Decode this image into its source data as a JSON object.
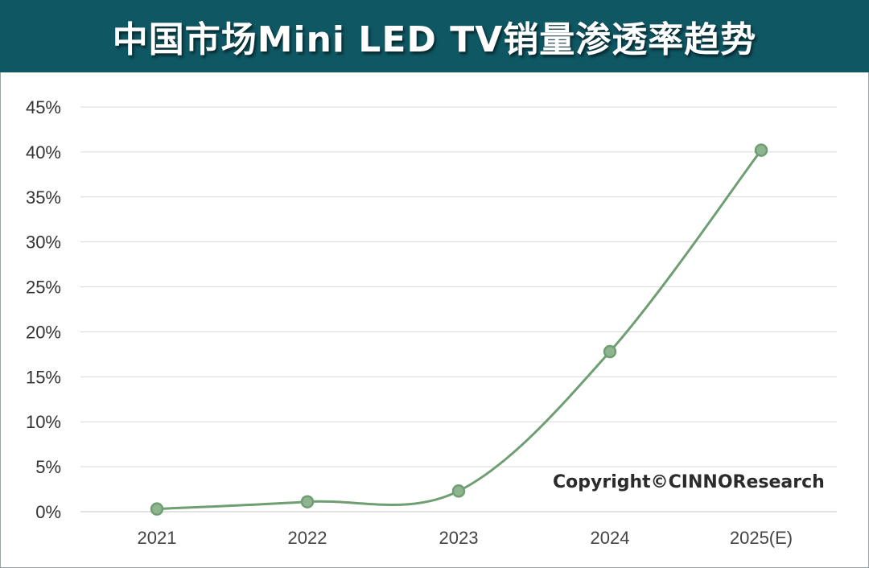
{
  "header": {
    "title": "中国市场Mini LED TV销量渗透率趋势"
  },
  "chart_data": {
    "type": "line",
    "title": "中国市场Mini LED TV销量渗透率趋势",
    "categories": [
      "2021",
      "2022",
      "2023",
      "2024",
      "2025(E)"
    ],
    "series": [
      {
        "values": [
          0.3,
          1.1,
          2.3,
          17.8,
          40.2
        ]
      }
    ],
    "ylim": [
      0,
      45
    ],
    "yticks": [
      "0%",
      "5%",
      "10%",
      "15%",
      "20%",
      "25%",
      "30%",
      "35%",
      "40%",
      "45%"
    ],
    "ytick_values": [
      0,
      5,
      10,
      15,
      20,
      25,
      30,
      35,
      40,
      45
    ],
    "grid": true,
    "annotation": "Copyright©CINNOResearch",
    "colors": {
      "line": "#6e9e72",
      "marker_fill": "#8fb58f",
      "marker_stroke": "#6e9e72",
      "grid": "#d9d9d9",
      "header_bg": "#0f5763"
    }
  }
}
